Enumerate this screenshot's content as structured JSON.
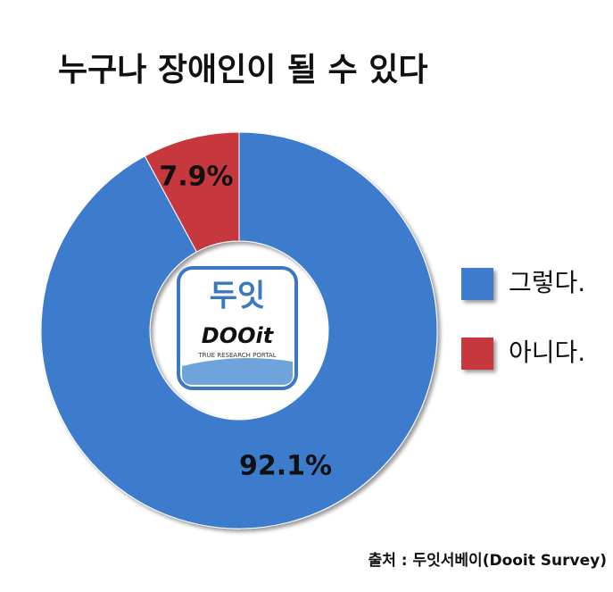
{
  "chart_data": {
    "type": "donut",
    "title": "누구나 장애인이 될 수 있다",
    "categories": [
      "그렇다.",
      "아니다."
    ],
    "values": [
      92.1,
      7.9
    ],
    "value_labels": [
      "92.1%",
      "7.9%"
    ],
    "colors": [
      "#3d7ccd",
      "#c6393c"
    ],
    "logo": {
      "name": "두잇",
      "brand": "DOOit",
      "tagline": "TRUE RESEARCH PORTAL"
    },
    "source": "출처 : 두잇서베이(Dooit Survey)"
  }
}
